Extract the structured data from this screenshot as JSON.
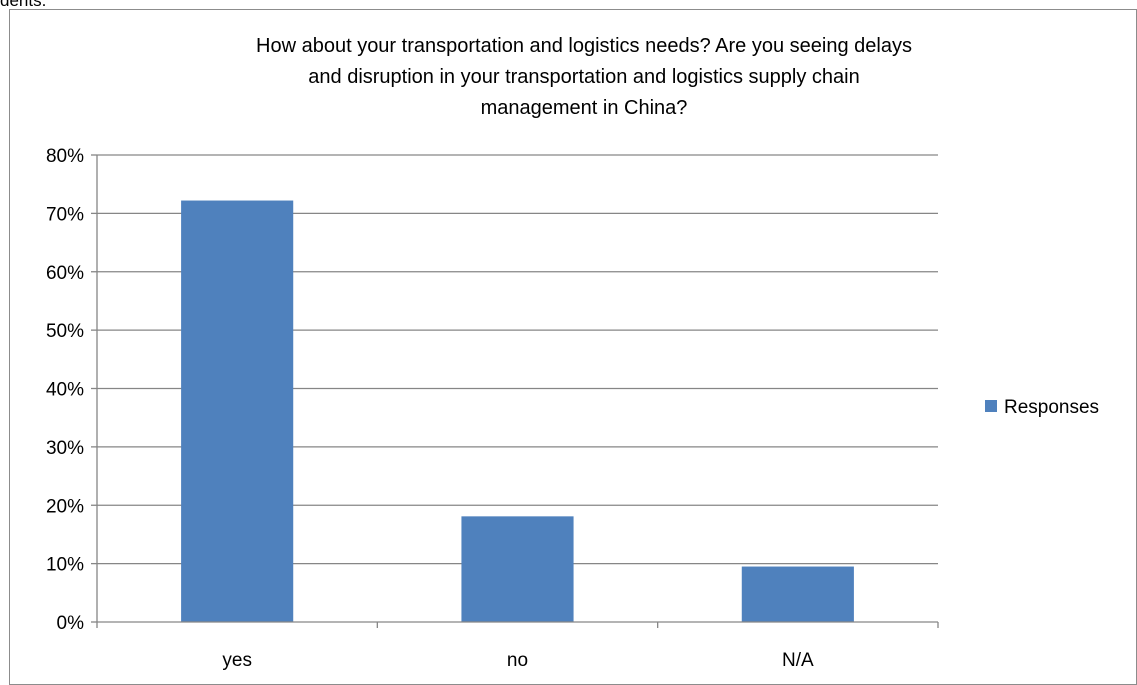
{
  "page_fragment": "dents.",
  "chart_data": {
    "type": "bar",
    "title_lines": [
      "How about your transportation and logistics needs? Are you seeing delays",
      "and disruption in your transportation and logistics supply chain",
      "management in China?"
    ],
    "categories": [
      "yes",
      "no",
      "N/A"
    ],
    "series": [
      {
        "name": "Responses",
        "values": [
          0.722,
          0.181,
          0.095
        ],
        "color": "#4f81bd"
      }
    ],
    "ylim": [
      0,
      0.8
    ],
    "yticks": [
      0,
      0.1,
      0.2,
      0.3,
      0.4,
      0.5,
      0.6,
      0.7,
      0.8
    ],
    "ytick_labels": [
      "0%",
      "10%",
      "20%",
      "30%",
      "40%",
      "50%",
      "60%",
      "70%",
      "80%"
    ],
    "grid": true,
    "legend_position": "right",
    "gridline_color": "#868686"
  }
}
